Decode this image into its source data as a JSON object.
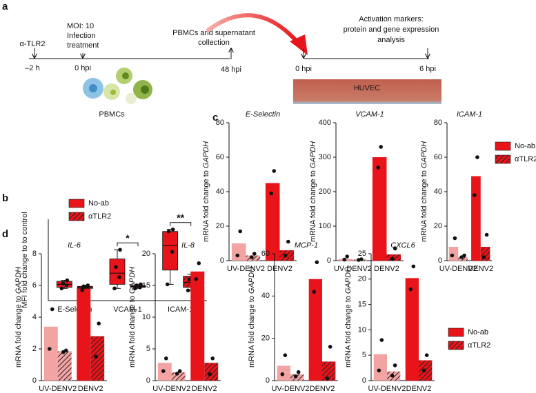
{
  "panel_labels": {
    "a": "a",
    "b": "b",
    "c": "c",
    "d": "d"
  },
  "panel_a": {
    "pretreat": "α-TLR2",
    "t_minus2": "–2 h",
    "moi": [
      "MOI: 10",
      "Infection",
      "treatment"
    ],
    "t0": "0 hpi",
    "collection": [
      "PBMCs and supernatant",
      "collection"
    ],
    "t48": "48 hpi",
    "cells": "PBMCs",
    "activation": [
      "Activation markers:",
      "protein and gene expression",
      "analysis"
    ],
    "t0b": "0 hpi",
    "t6": "6 hpi",
    "huvec": "HUVEC"
  },
  "chart_data": [
    {
      "type": "box",
      "ylabel": "MFI fold change to to control",
      "ylim": [
        0,
        8
      ],
      "categories": [
        "E-Selectin",
        "VCAM-1",
        "ICAM-1"
      ],
      "legend": "top-left",
      "series": [
        {
          "name": "No-ab",
          "color": "#e8141a",
          "hatch": false,
          "boxes": [
            {
              "min": 1.2,
              "q1": 1.3,
              "median": 1.6,
              "q3": 1.9,
              "max": 2.0,
              "points": [
                1.2,
                1.5,
                1.7,
                2.0
              ]
            },
            {
              "min": 1.2,
              "q1": 1.6,
              "median": 2.7,
              "q3": 4.1,
              "max": 5.0,
              "points": [
                1.2,
                2.3,
                3.3,
                5.0
              ]
            },
            {
              "min": 1.6,
              "q1": 3.0,
              "median": 5.4,
              "q3": 6.8,
              "max": 7.0,
              "points": [
                1.6,
                4.8,
                6.8,
                7.0
              ]
            }
          ]
        },
        {
          "name": "αTLR2",
          "color": "#e8141a",
          "hatch": true,
          "boxes": [
            {
              "min": 1.1,
              "q1": 1.2,
              "median": 1.3,
              "q3": 1.4,
              "max": 1.5,
              "points": [
                1.1,
                1.2,
                1.4,
                1.5
              ]
            },
            {
              "min": 1.2,
              "q1": 1.3,
              "median": 1.4,
              "q3": 1.5,
              "max": 1.6,
              "points": [
                1.2,
                1.3,
                1.5,
                1.6
              ]
            },
            {
              "min": 1.0,
              "q1": 1.3,
              "median": 1.8,
              "q3": 2.4,
              "max": 2.6,
              "points": [
                1.0,
                1.5,
                2.1,
                2.6
              ]
            }
          ]
        }
      ],
      "annotations": [
        {
          "text": "*",
          "category": 1
        },
        {
          "text": "**",
          "category": 2
        }
      ]
    },
    {
      "type": "bar",
      "title": "E-Selectin",
      "ylabel": "mRNA fold change to",
      "ylabel_italic": "GAPDH",
      "categories": [
        "UV-DENV2",
        "DENV2"
      ],
      "ylim": [
        0,
        80
      ],
      "yticks": [
        0,
        20,
        40,
        60,
        80
      ],
      "series": [
        {
          "colors": [
            "#f4a3a3",
            "#e8141a"
          ],
          "hatch": false,
          "values": [
            10,
            45
          ],
          "points": [
            [
              3,
              17
            ],
            [
              39,
              52
            ]
          ]
        },
        {
          "colors": [
            "#f4a3a3",
            "#e8141a"
          ],
          "hatch": true,
          "values": [
            3,
            6
          ],
          "points": [
            [
              2,
              4
            ],
            [
              3,
              11
            ]
          ]
        }
      ]
    },
    {
      "type": "bar",
      "title": "VCAM-1",
      "ylabel": "mRNA fold change to",
      "ylabel_italic": "GAPDH",
      "categories": [
        "UV-DENV2",
        "DENV2"
      ],
      "ylim": [
        0,
        400
      ],
      "yticks": [
        0,
        100,
        200,
        300,
        400
      ],
      "series": [
        {
          "colors": [
            "#f4a3a3",
            "#e8141a"
          ],
          "hatch": false,
          "values": [
            5,
            300
          ],
          "points": [
            [
              3,
              12
            ],
            [
              270,
              330
            ]
          ]
        },
        {
          "colors": [
            "#f4a3a3",
            "#e8141a"
          ],
          "hatch": true,
          "values": [
            3,
            18
          ],
          "points": [
            [
              2,
              4
            ],
            [
              5,
              35
            ]
          ]
        }
      ]
    },
    {
      "type": "bar",
      "title": "ICAM-1",
      "ylabel": "mRNA fold change to",
      "ylabel_italic": "GAPDH",
      "categories": [
        "UV-DENV2",
        "DENV2"
      ],
      "ylim": [
        0,
        80
      ],
      "yticks": [
        0,
        20,
        40,
        60,
        80
      ],
      "legend": "right",
      "series": [
        {
          "name": "No-ab",
          "color": "#e8141a",
          "colors": [
            "#f4a3a3",
            "#e8141a"
          ],
          "hatch": false,
          "values": [
            8,
            49
          ],
          "points": [
            [
              3,
              13
            ],
            [
              38,
              60
            ]
          ]
        },
        {
          "name": "αTLR2",
          "color": "#e8141a",
          "colors": [
            "#f4a3a3",
            "#e8141a"
          ],
          "hatch": true,
          "values": [
            2,
            8
          ],
          "points": [
            [
              2,
              3
            ],
            [
              2,
              15
            ]
          ]
        }
      ]
    },
    {
      "type": "bar",
      "title": "IL-6",
      "ylabel": "mRNA fold change to",
      "ylabel_italic": "GAPDH",
      "categories": [
        "UV-DENV2",
        "DENV2"
      ],
      "ylim": [
        0,
        8
      ],
      "yticks": [
        0,
        2,
        4,
        6,
        8
      ],
      "series": [
        {
          "colors": [
            "#f4a3a3",
            "#e8141a"
          ],
          "hatch": false,
          "values": [
            3.4,
            5.8
          ],
          "points": [
            [
              2.0,
              4.5
            ],
            [
              5.7,
              5.9
            ]
          ]
        },
        {
          "colors": [
            "#f4a3a3",
            "#e8141a"
          ],
          "hatch": true,
          "values": [
            1.85,
            2.8
          ],
          "points": [
            [
              1.8,
              1.9
            ],
            [
              1.5,
              3.6
            ]
          ]
        }
      ]
    },
    {
      "type": "bar",
      "title": "IL-8",
      "ylabel": "mRNA fold change to",
      "ylabel_italic": "GAPDH",
      "categories": [
        "UV-DENV2",
        "DENV2"
      ],
      "ylim": [
        0,
        20
      ],
      "yticks": [
        0,
        5,
        10,
        15,
        20
      ],
      "series": [
        {
          "colors": [
            "#f4a3a3",
            "#e8141a"
          ],
          "hatch": false,
          "values": [
            2.8,
            17.2
          ],
          "points": [
            [
              1.5,
              3.5
            ],
            [
              16,
              18.5
            ]
          ]
        },
        {
          "colors": [
            "#f4a3a3",
            "#e8141a"
          ],
          "hatch": true,
          "values": [
            1.3,
            2.8
          ],
          "points": [
            [
              1.1,
              1.5
            ],
            [
              1,
              3.5
            ]
          ]
        }
      ]
    },
    {
      "type": "bar",
      "title": "MCP-1",
      "ylabel": "mRNA fold change to",
      "ylabel_italic": "GAPDH",
      "categories": [
        "UV-DENV2",
        "DENV2"
      ],
      "ylim": [
        0,
        60
      ],
      "yticks": [
        0,
        20,
        40,
        60
      ],
      "series": [
        {
          "colors": [
            "#f4a3a3",
            "#e8141a"
          ],
          "hatch": false,
          "values": [
            7,
            48
          ],
          "points": [
            [
              3,
              12
            ],
            [
              42,
              56
            ]
          ]
        },
        {
          "colors": [
            "#f4a3a3",
            "#e8141a"
          ],
          "hatch": true,
          "values": [
            3,
            9
          ],
          "points": [
            [
              2,
              4
            ],
            [
              1,
              16
            ]
          ]
        }
      ]
    },
    {
      "type": "bar",
      "title": "CXCL6",
      "ylabel": "mRNA fold change to",
      "ylabel_italic": "GAPDH",
      "categories": [
        "UV-DENV2",
        "DENV2"
      ],
      "ylim": [
        0,
        25
      ],
      "yticks": [
        0,
        5,
        10,
        15,
        20,
        25
      ],
      "legend": "right",
      "series": [
        {
          "name": "No-ab",
          "color": "#e8141a",
          "colors": [
            "#f4a3a3",
            "#e8141a"
          ],
          "hatch": false,
          "values": [
            5.2,
            20.2
          ],
          "points": [
            [
              2,
              8
            ],
            [
              18,
              22.5
            ]
          ]
        },
        {
          "name": "αTLR2",
          "color": "#e8141a",
          "colors": [
            "#f4a3a3",
            "#e8141a"
          ],
          "hatch": true,
          "values": [
            1.8,
            4
          ],
          "points": [
            [
              1,
              3
            ],
            [
              2,
              5
            ]
          ]
        }
      ]
    }
  ]
}
